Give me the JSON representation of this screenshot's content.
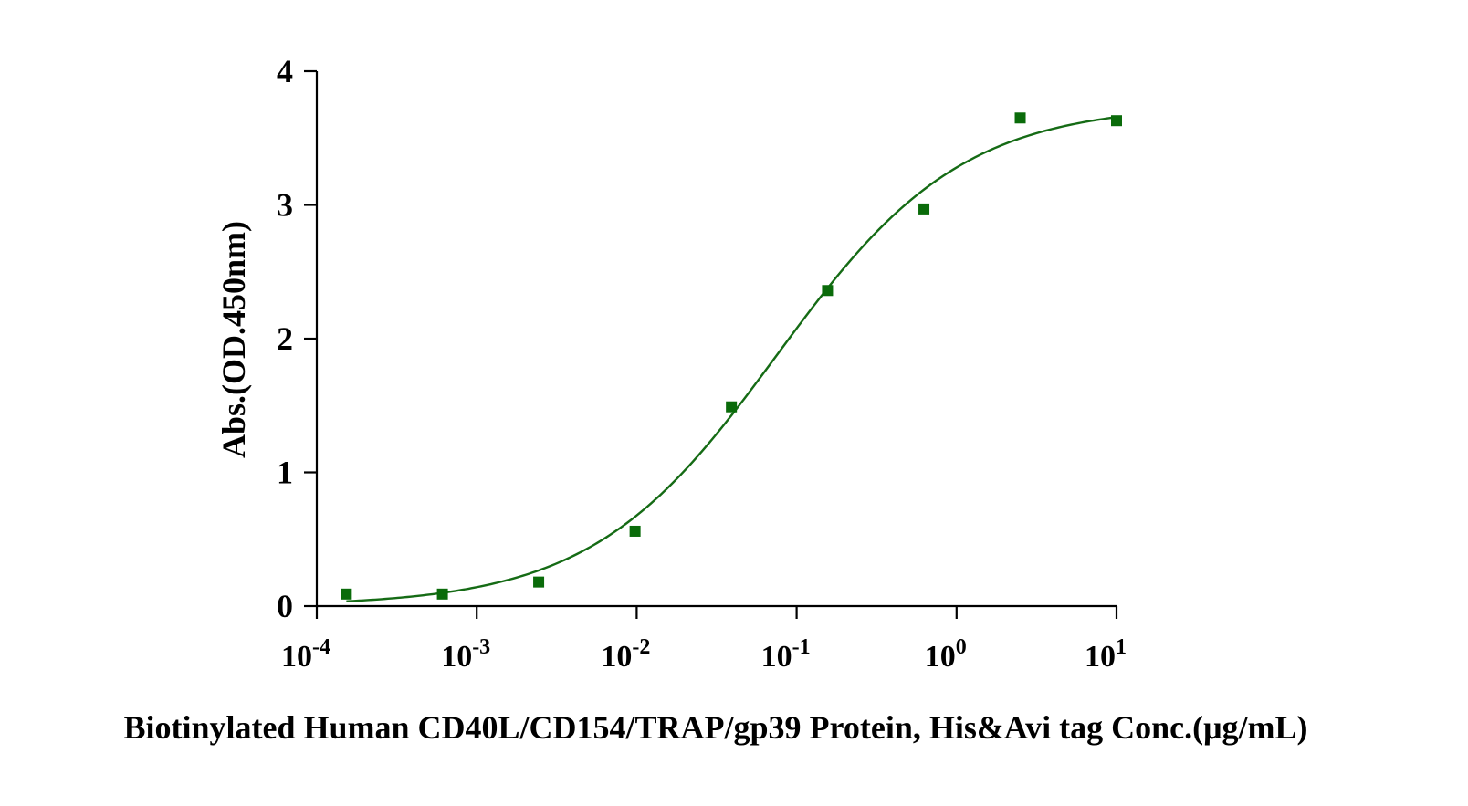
{
  "chart_data": {
    "type": "scatter",
    "title": "",
    "xlabel": "Biotinylated Human CD40L/CD154/TRAP/gp39 Protein, His&Avi tag Conc.(μg/mL)",
    "ylabel": "Abs.(OD.450nm)",
    "x_scale": "log",
    "xlim": [
      0.0001,
      10
    ],
    "ylim": [
      0,
      4
    ],
    "x_ticks": [
      {
        "base": "10",
        "exp": "-4",
        "value": 0.0001
      },
      {
        "base": "10",
        "exp": "-3",
        "value": 0.001
      },
      {
        "base": "10",
        "exp": "-2",
        "value": 0.01
      },
      {
        "base": "10",
        "exp": "-1",
        "value": 0.1
      },
      {
        "base": "10",
        "exp": "0",
        "value": 1
      },
      {
        "base": "10",
        "exp": "1",
        "value": 10
      }
    ],
    "y_ticks": [
      "0",
      "1",
      "2",
      "3",
      "4"
    ],
    "grid": false,
    "series": [
      {
        "x": [
          0.000153,
          0.00061,
          0.00244,
          0.00977,
          0.0391,
          0.156,
          0.625,
          2.5,
          10
        ],
        "y": [
          0.09,
          0.09,
          0.18,
          0.56,
          1.49,
          2.36,
          2.97,
          3.65,
          3.63
        ],
        "color": "#0a6b0a",
        "marker": "square"
      }
    ],
    "fit": {
      "model": "4PL",
      "bottom": 0.0,
      "top": 3.75,
      "ec50": 0.075,
      "hill": 0.75,
      "color": "#156b15"
    }
  }
}
